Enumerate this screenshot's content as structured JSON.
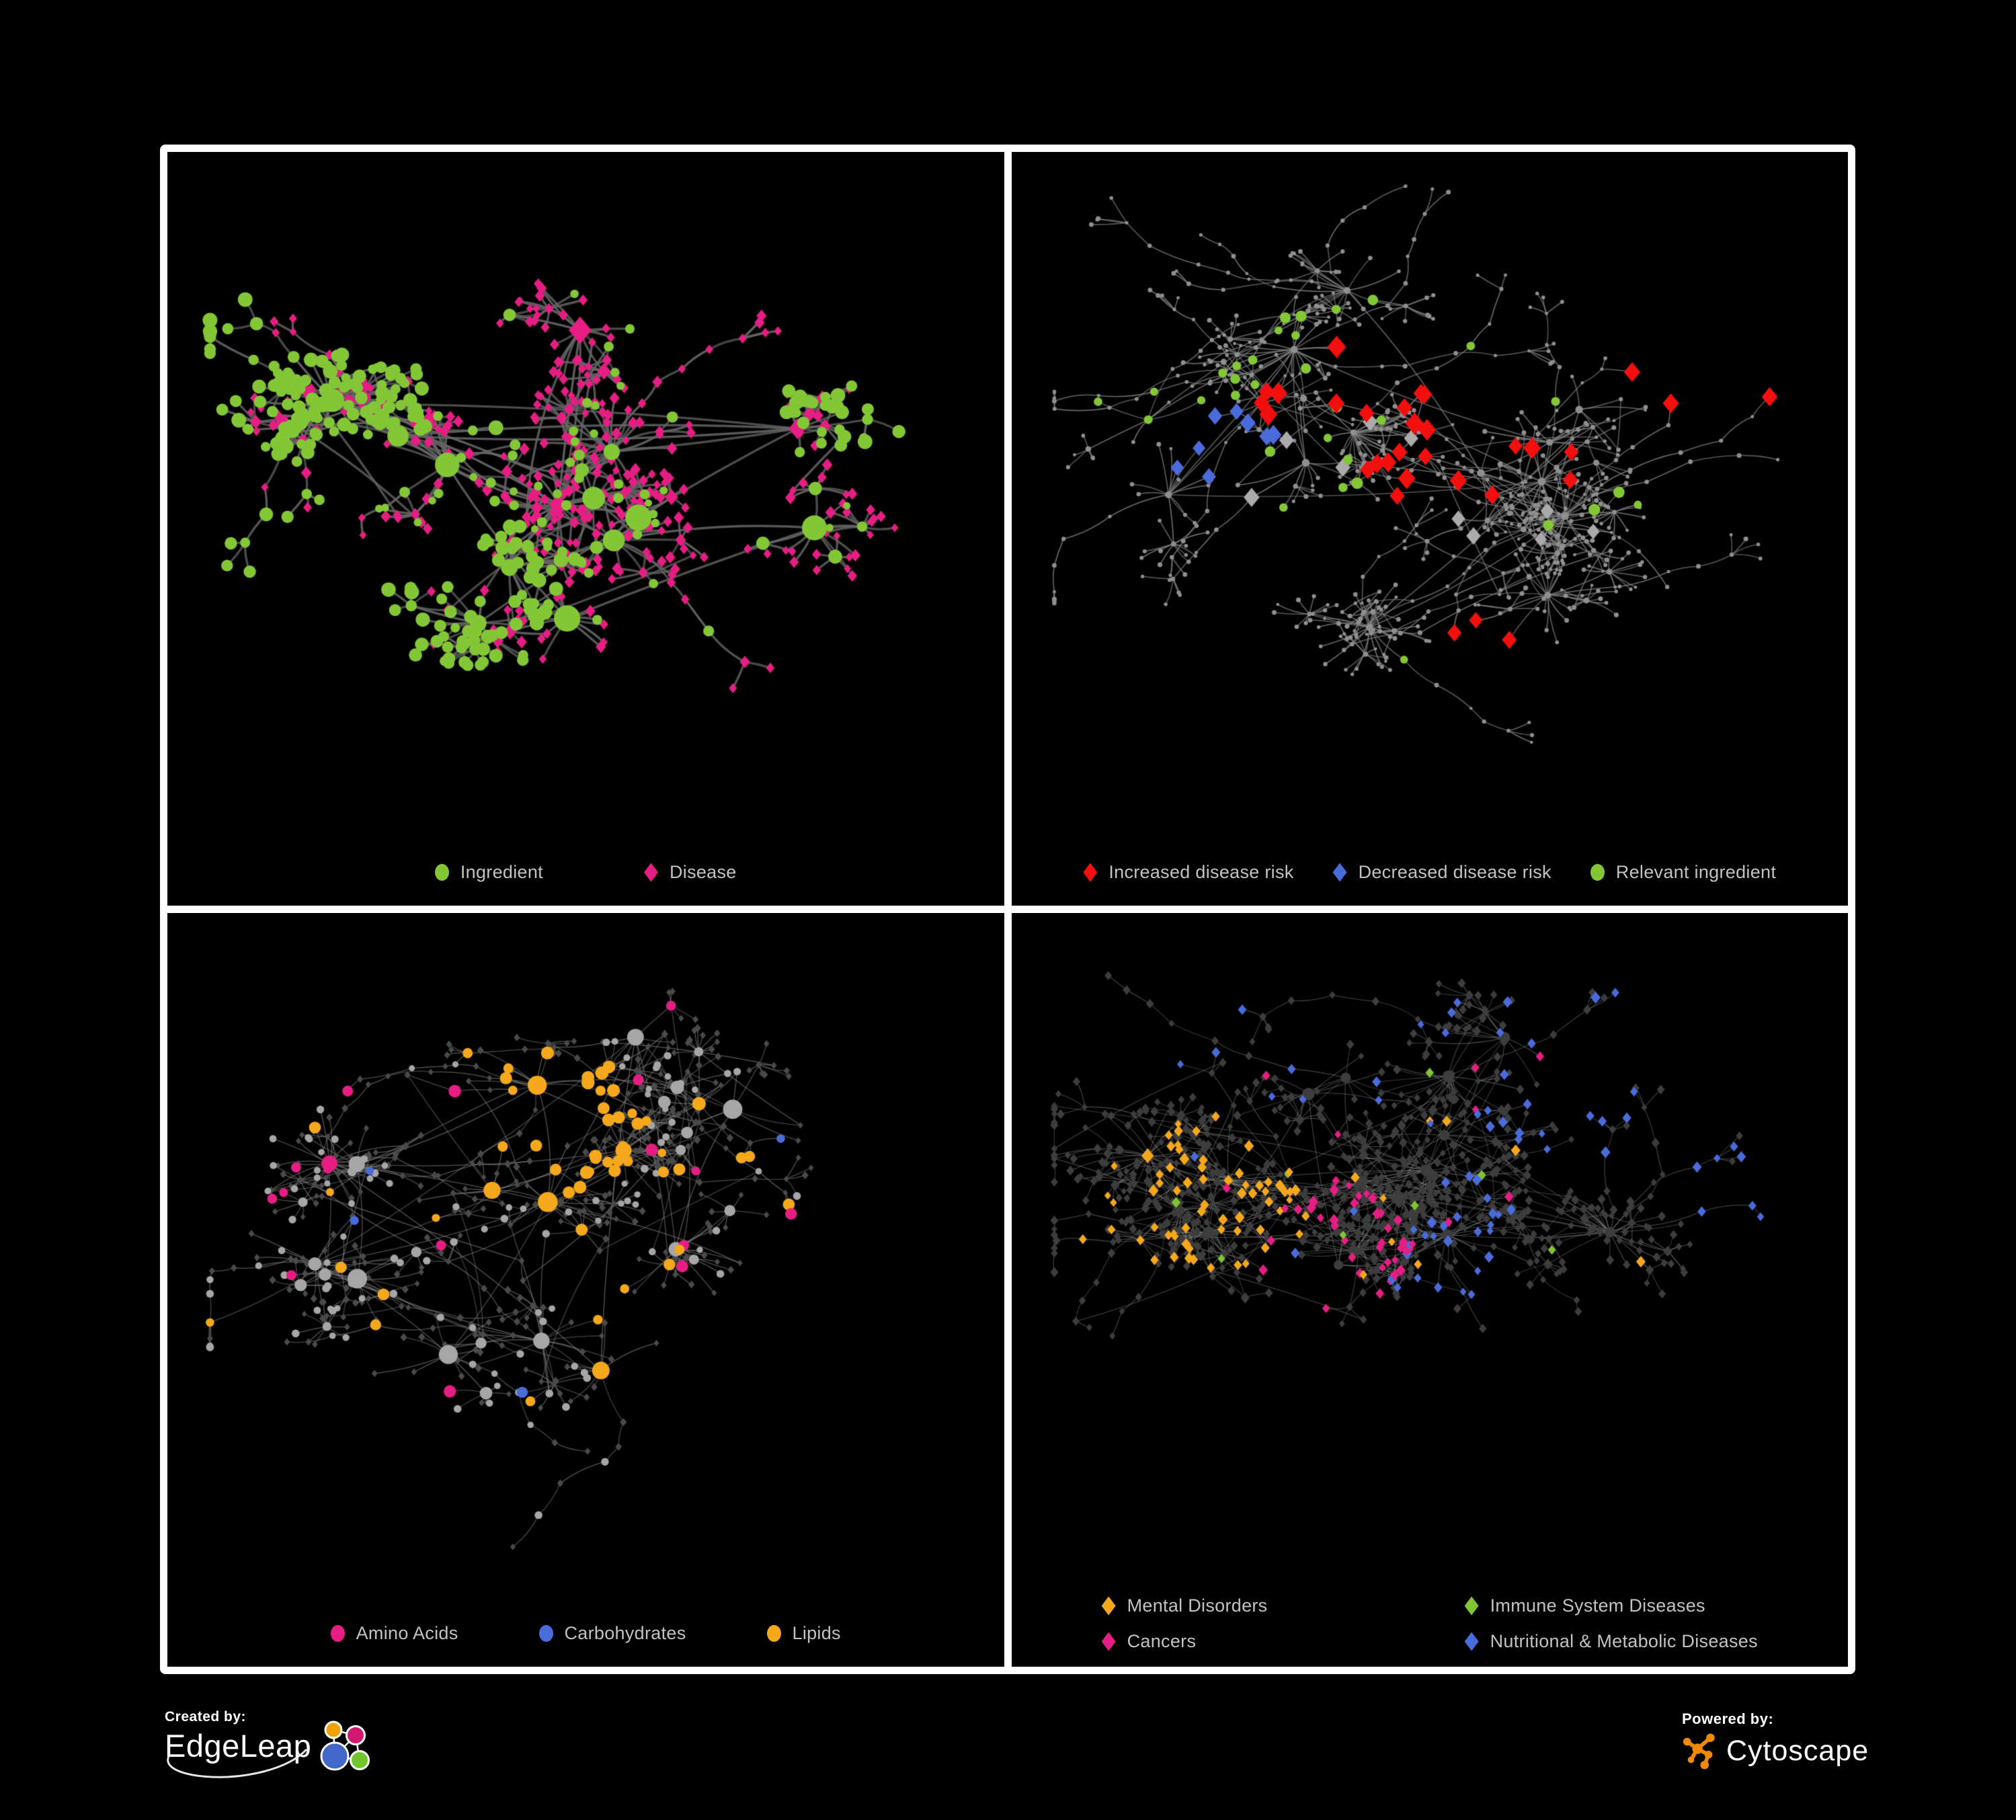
{
  "figure": {
    "background": "#000000",
    "frame_color": "#ffffff"
  },
  "panels": [
    {
      "title": "ingredient-disease-network",
      "legend": {
        "rows": 1,
        "items": [
          {
            "label": "Ingredient",
            "shape": "circle",
            "color": "#83C636"
          },
          {
            "label": "Disease",
            "shape": "diamond",
            "color": "#E61E84"
          }
        ]
      },
      "network": {
        "seed": 7,
        "gen": {
          "hubs": 15,
          "hubLeafMax": 18,
          "subHubProb": 0.22,
          "chainProb": 0.1,
          "extraHubLinks": 5,
          "crossLinks": 50
        },
        "edge": {
          "color": "#666666",
          "width": 3.4,
          "alpha": 0.92
        },
        "style": {
          "mode": "two-class",
          "circleColor": "#83C636",
          "diamondColor": "#E61E84",
          "greenBurstProb": 0.2,
          "hubCircleProb": 0.72,
          "subCircleProb": 0.42,
          "leafCircleProb": 0.13,
          "sizes": {
            "hub": [
              12,
              21
            ],
            "sub": [
              7,
              11
            ],
            "leaf": [
              5.5,
              8.5
            ]
          }
        }
      }
    },
    {
      "title": "disease-risk-network",
      "legend": {
        "rows": 1,
        "items": [
          {
            "label": "Increased disease risk",
            "shape": "diamond",
            "color": "#F40F0F"
          },
          {
            "label": "Decreased disease risk",
            "shape": "diamond",
            "color": "#4A6CDB"
          },
          {
            "label": "Relevant ingredient",
            "shape": "circle",
            "color": "#83C636"
          }
        ]
      },
      "network": {
        "seed": 19,
        "gen": {
          "hubs": 16,
          "hubLeafMax": 20,
          "subHubProb": 0.2,
          "chainProb": 0.17,
          "extraHubLinks": 4,
          "crossLinks": 34
        },
        "edge": {
          "color": "#7E7E7E",
          "width": 1.7,
          "alpha": 0.85
        },
        "style": {
          "mode": "highlight",
          "base": {
            "color": "#8F8F8F",
            "sizes": {
              "hub": [
                4.5,
                6
              ],
              "sub": [
                3.2,
                4.6
              ],
              "leaf": [
                2.3,
                3.6
              ]
            }
          },
          "highlights": [
            {
              "shape": "diamond",
              "color": "#F40F0F",
              "size": [
                11,
                15
              ],
              "count": 20,
              "region": [
                0.42,
                0.4,
                0.16
              ]
            },
            {
              "shape": "diamond",
              "color": "#F40F0F",
              "size": [
                11,
                14
              ],
              "count": 6,
              "region": [
                0.6,
                0.42,
                0.12
              ]
            },
            {
              "shape": "diamond",
              "color": "#F40F0F",
              "size": [
                10,
                13
              ],
              "count": 3,
              "region": [
                0.86,
                0.3,
                0.1
              ]
            },
            {
              "shape": "diamond",
              "color": "#F40F0F",
              "size": [
                10,
                13
              ],
              "count": 3,
              "region": [
                0.58,
                0.78,
                0.07
              ]
            },
            {
              "shape": "diamond",
              "color": "#4A6CDB",
              "size": [
                10,
                13
              ],
              "count": 8,
              "region": [
                0.23,
                0.44,
                0.08
              ]
            },
            {
              "shape": "diamond",
              "color": "#4A6CDB",
              "size": [
                10,
                12
              ],
              "count": 2,
              "region": [
                0.88,
                0.25,
                0.04
              ]
            },
            {
              "shape": "diamond",
              "color": "#ABABAB",
              "size": [
                10,
                13
              ],
              "count": 7,
              "region": [
                0.43,
                0.45,
                0.2
              ]
            },
            {
              "shape": "diamond",
              "color": "#ABABAB",
              "size": [
                9,
                12
              ],
              "count": 3,
              "region": [
                0.6,
                0.6,
                0.15
              ]
            },
            {
              "shape": "circle",
              "color": "#83C636",
              "size": [
                6,
                9
              ],
              "count": 18,
              "region": [
                0.4,
                0.38,
                0.2
              ]
            },
            {
              "shape": "circle",
              "color": "#83C636",
              "size": [
                6,
                8
              ],
              "count": 5,
              "region": [
                0.15,
                0.33,
                0.12
              ]
            },
            {
              "shape": "circle",
              "color": "#83C636",
              "size": [
                6,
                9
              ],
              "count": 4,
              "region": [
                0.7,
                0.58,
                0.1
              ]
            },
            {
              "shape": "circle",
              "color": "#83C636",
              "size": [
                5.5,
                7.5
              ],
              "count": 5,
              "region": [
                0.5,
                0.45,
                0.45
              ]
            }
          ]
        }
      }
    },
    {
      "title": "macronutrient-network",
      "legend": {
        "rows": 1,
        "items": [
          {
            "label": "Amino Acids",
            "shape": "circle",
            "color": "#E61E84"
          },
          {
            "label": "Carbohydrates",
            "shape": "circle",
            "color": "#4A6CDB"
          },
          {
            "label": "Lipids",
            "shape": "circle",
            "color": "#F5A81C"
          }
        ]
      },
      "network": {
        "seed": 33,
        "gen": {
          "hubs": 16,
          "hubLeafMax": 22,
          "subHubProb": 0.24,
          "chainProb": 0.12,
          "extraHubLinks": 6,
          "crossLinks": 70
        },
        "edge": {
          "color": "#8F8F8F",
          "width": 1.5,
          "alpha": 0.55
        },
        "style": {
          "mode": "metabolite",
          "circleColor": "#A6A6A6",
          "diamondColor": "#4A4A4A",
          "circleProb": {
            "hub": 1,
            "sub": 0.6,
            "leaf": 0.3
          },
          "sizes": {
            "hubC": [
              9,
              15
            ],
            "subC": [
              6.5,
              9.5
            ],
            "leafC": [
              4.5,
              6
            ],
            "diamond": [
              4,
              5.5
            ]
          },
          "highlights": [
            {
              "color": "#F5A81C",
              "size": [
                6.5,
                10
              ],
              "count": 34,
              "region": [
                0.45,
                0.3,
                0.13
              ]
            },
            {
              "color": "#F5A81C",
              "size": [
                6.5,
                10
              ],
              "count": 12,
              "region": [
                0.53,
                0.57,
                0.07
              ]
            },
            {
              "color": "#F5A81C",
              "size": [
                6,
                9
              ],
              "count": 20,
              "region": [
                0.5,
                0.45,
                0.6
              ]
            },
            {
              "color": "#4A6CDB",
              "size": [
                6.5,
                9
              ],
              "count": 11,
              "region": [
                0.48,
                0.27,
                0.08
              ]
            },
            {
              "color": "#4A6CDB",
              "size": [
                6,
                8.5
              ],
              "count": 4,
              "region": [
                0.5,
                0.5,
                0.6
              ]
            },
            {
              "color": "#E61E84",
              "size": [
                6.5,
                9.5
              ],
              "count": 15,
              "region": [
                0.5,
                0.52,
                0.55
              ]
            },
            {
              "color": "#E61E84",
              "size": [
                6.5,
                9
              ],
              "count": 2,
              "region": [
                0.08,
                0.33,
                0.12
              ]
            }
          ]
        }
      }
    },
    {
      "title": "disease-class-network",
      "legend": {
        "rows": 2,
        "items": [
          {
            "label": "Mental Disorders",
            "shape": "diamond",
            "color": "#F5A81C"
          },
          {
            "label": "Immune System Diseases",
            "shape": "diamond",
            "color": "#7FC431"
          },
          {
            "label": "Cancers",
            "shape": "diamond",
            "color": "#E61E84"
          },
          {
            "label": "Nutritional & Metabolic Diseases",
            "shape": "diamond",
            "color": "#4A6CDB"
          }
        ]
      },
      "network": {
        "seed": 47,
        "gen": {
          "hubs": 17,
          "hubLeafMax": 22,
          "subHubProb": 0.24,
          "chainProb": 0.13,
          "extraHubLinks": 6,
          "crossLinks": 70
        },
        "edge": {
          "color": "#9A9A9A",
          "width": 1.1,
          "alpha": 0.5
        },
        "style": {
          "mode": "classes",
          "baseColor": "#3D3D3D",
          "sizes": {
            "hub": [
              7,
              10
            ],
            "sub": [
              5.5,
              7.5
            ],
            "leaf": [
              4.5,
              6.5
            ]
          },
          "highlights": [
            {
              "shape": "diamond",
              "color": "#F5A81C",
              "size": [
                5,
                8
              ],
              "count": 64,
              "region": [
                0.21,
                0.42,
                0.14
              ]
            },
            {
              "shape": "diamond",
              "color": "#F5A81C",
              "size": [
                5,
                7.5
              ],
              "count": 12,
              "region": [
                0.5,
                0.5,
                0.65
              ]
            },
            {
              "shape": "diamond",
              "color": "#E61E84",
              "size": [
                5,
                8
              ],
              "count": 38,
              "region": [
                0.37,
                0.5,
                0.11
              ]
            },
            {
              "shape": "diamond",
              "color": "#E61E84",
              "size": [
                5,
                7.5
              ],
              "count": 6,
              "region": [
                0.88,
                0.13,
                0.06
              ]
            },
            {
              "shape": "diamond",
              "color": "#E61E84",
              "size": [
                5,
                7.5
              ],
              "count": 8,
              "region": [
                0.5,
                0.55,
                0.6
              ]
            },
            {
              "shape": "diamond",
              "color": "#4A6CDB",
              "size": [
                5,
                8
              ],
              "count": 18,
              "region": [
                0.52,
                0.52,
                0.08
              ]
            },
            {
              "shape": "diamond",
              "color": "#4A6CDB",
              "size": [
                5,
                8
              ],
              "count": 8,
              "region": [
                0.56,
                0.43,
                0.05
              ]
            },
            {
              "shape": "diamond",
              "color": "#4A6CDB",
              "size": [
                5,
                7.5
              ],
              "count": 10,
              "region": [
                0.33,
                0.07,
                0.22
              ]
            },
            {
              "shape": "diamond",
              "color": "#4A6CDB",
              "size": [
                5,
                8
              ],
              "count": 20,
              "region": [
                0.72,
                0.22,
                0.18
              ]
            },
            {
              "shape": "diamond",
              "color": "#4A6CDB",
              "size": [
                5,
                7.5
              ],
              "count": 6,
              "region": [
                0.9,
                0.42,
                0.08
              ]
            },
            {
              "shape": "diamond",
              "color": "#4A6CDB",
              "size": [
                5,
                7.5
              ],
              "count": 8,
              "region": [
                0.5,
                0.35,
                0.6
              ]
            },
            {
              "shape": "diamond",
              "color": "#7FC431",
              "size": [
                5,
                7.5
              ],
              "count": 8,
              "region": [
                0.5,
                0.45,
                0.5
              ]
            }
          ]
        }
      }
    }
  ],
  "footer": {
    "created_by": {
      "label": "Created by:",
      "brand": "EdgeLeap",
      "logo_colors": {
        "orange": "#F0A202",
        "pink": "#D2186E",
        "blue": "#4067C9",
        "green": "#72C62D"
      }
    },
    "powered_by": {
      "label": "Powered by:",
      "brand": "Cytoscape",
      "logo_color": "#F08A00"
    }
  }
}
